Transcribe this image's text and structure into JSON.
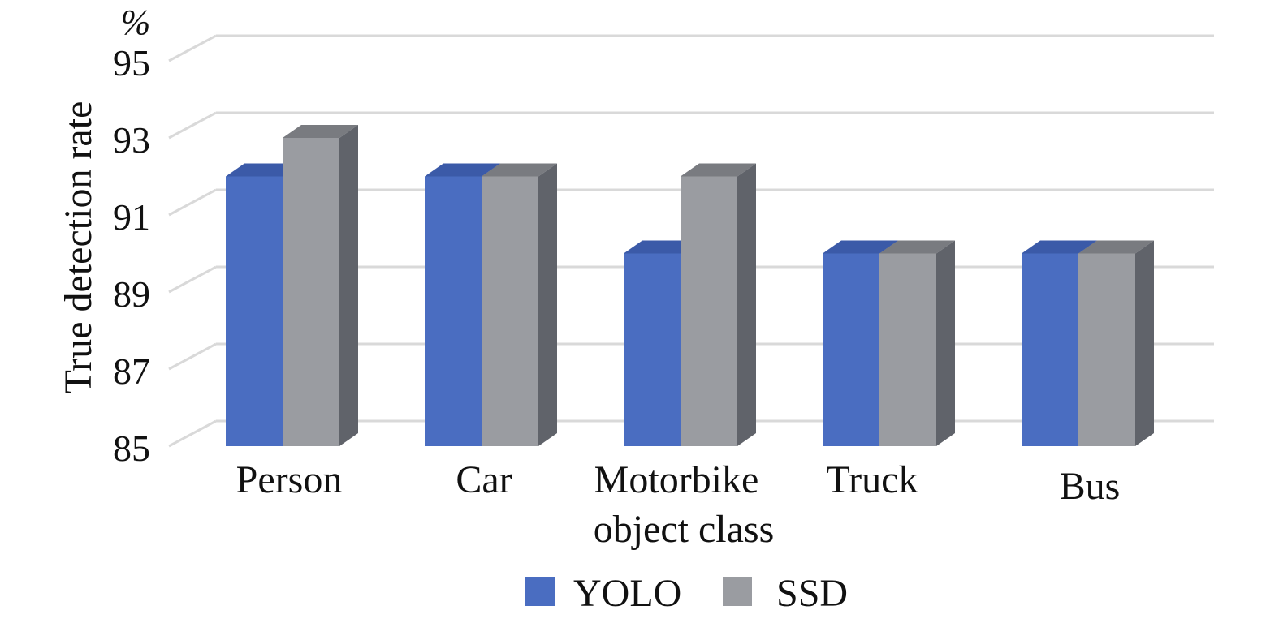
{
  "chart_data": {
    "type": "bar",
    "style": "3d-clustered-column",
    "categories": [
      "Person",
      "Car",
      "Motorbike",
      "Truck",
      "Bus"
    ],
    "series": [
      {
        "name": "YOLO",
        "values": [
          92,
          92,
          90,
          90,
          90
        ]
      },
      {
        "name": "SSD",
        "values": [
          93,
          92,
          92,
          90,
          90
        ]
      }
    ],
    "ylabel": "True detection rate",
    "unit_label": "%",
    "xlabel": "object class",
    "ylim": [
      85,
      95
    ],
    "yticks": [
      85,
      87,
      89,
      91,
      93,
      95
    ],
    "grid": true,
    "legend_position": "bottom",
    "colors": {
      "YOLO": {
        "front": "#4a6dc1",
        "top": "#3b5aa8",
        "side": "#33498d"
      },
      "SSD": {
        "front": "#9a9ca1",
        "top": "#797b80",
        "side": "#60636a"
      },
      "grid": "#d9d9d9",
      "text": "#111111"
    }
  }
}
